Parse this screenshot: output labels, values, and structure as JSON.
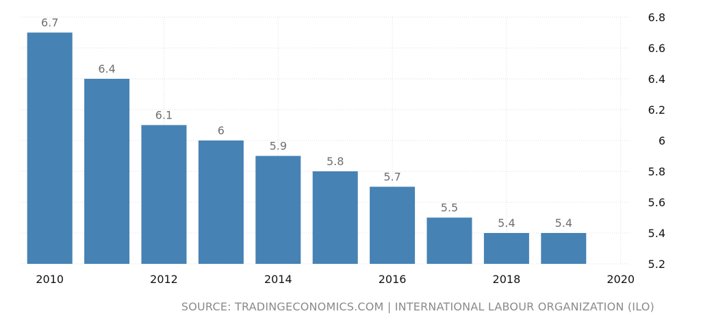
{
  "chart_data": {
    "type": "bar",
    "x": [
      2010,
      2011,
      2012,
      2013,
      2014,
      2015,
      2016,
      2017,
      2018,
      2019
    ],
    "values": [
      6.7,
      6.4,
      6.1,
      6,
      5.9,
      5.8,
      5.7,
      5.5,
      5.4,
      5.4
    ],
    "value_labels": [
      "6.7",
      "6.4",
      "6.1",
      "6",
      "5.9",
      "5.8",
      "5.7",
      "5.5",
      "5.4",
      "5.4"
    ],
    "x_ticks": [
      "2010",
      "2012",
      "2014",
      "2016",
      "2018",
      "2020"
    ],
    "y_ticks": [
      "5.2",
      "5.4",
      "5.6",
      "5.8",
      "6",
      "6.2",
      "6.4",
      "6.6",
      "6.8"
    ],
    "ylim": [
      5.2,
      6.8
    ],
    "xlim": [
      2009.5,
      2020
    ],
    "title": "",
    "xlabel": "",
    "ylabel": "",
    "grid": true,
    "y_axis_side": "right",
    "bar_color": "#4682b4",
    "grid_color": "#dcdcdc",
    "label_color": "#6e6e6e",
    "tick_color": "#111111"
  },
  "source": "SOURCE: TRADINGECONOMICS.COM | INTERNATIONAL LABOUR ORGANIZATION (ILO)"
}
